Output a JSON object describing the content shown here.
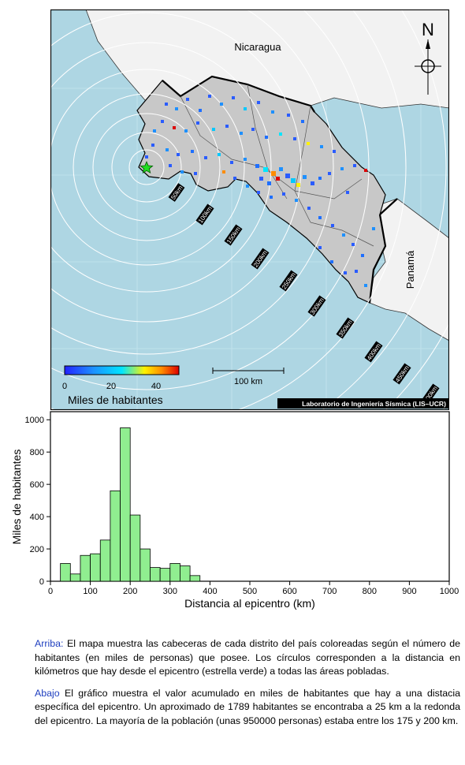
{
  "map": {
    "labels": {
      "north": "N",
      "nicaragua": "Nicaragua",
      "panama": "Panamá"
    },
    "ring_labels": [
      "50km",
      "100km",
      "150km",
      "200km",
      "250km",
      "300km",
      "350km",
      "400km",
      "450km",
      "500km"
    ],
    "scale_bar_label": "100 km",
    "colorbar": {
      "ticks": [
        "0",
        "20",
        "40"
      ],
      "title": "Miles de habitantes",
      "colors": [
        "#2a2aff",
        "#1e90ff",
        "#00e5ff",
        "#fff200",
        "#ff8c00",
        "#e00000"
      ]
    },
    "credit": "Laboratorio de Ingeniería Sísmica (LIS–UCR)",
    "colors": {
      "sea": "#aed6e3",
      "costa_rica": "#c8c8c8",
      "neighbors": "#f2f2f2",
      "epicenter": "#22dd22"
    }
  },
  "chart_data": {
    "type": "bar",
    "xlabel": "Distancia al epicentro (km)",
    "ylabel": "Miles de habitantes",
    "xlim": [
      0,
      1000
    ],
    "ylim": [
      0,
      1050
    ],
    "xticks": [
      0,
      100,
      200,
      300,
      400,
      500,
      600,
      700,
      800,
      900,
      1000
    ],
    "yticks": [
      0,
      200,
      400,
      600,
      800,
      1000
    ],
    "bin_width": 25,
    "bins": [
      {
        "start": 25,
        "value": 110
      },
      {
        "start": 50,
        "value": 45
      },
      {
        "start": 75,
        "value": 160
      },
      {
        "start": 100,
        "value": 170
      },
      {
        "start": 125,
        "value": 255
      },
      {
        "start": 150,
        "value": 560
      },
      {
        "start": 175,
        "value": 950
      },
      {
        "start": 200,
        "value": 410
      },
      {
        "start": 225,
        "value": 200
      },
      {
        "start": 250,
        "value": 85
      },
      {
        "start": 275,
        "value": 80
      },
      {
        "start": 300,
        "value": 110
      },
      {
        "start": 325,
        "value": 95
      },
      {
        "start": 350,
        "value": 35
      }
    ],
    "bar_color": "#90ee90"
  },
  "caption": {
    "p1_label": "Arriba:",
    "p1_text": " El mapa muestra las cabeceras de cada distrito del país coloreadas según el número de habitantes (en miles de personas) que posee.  Los círculos corresponden a la distancia en kilómetros que hay desde el epicentro (estrella verde) a todas las áreas pobladas.",
    "p2_label": "Abajo",
    "p2_text": " El gráfico muestra el valor acumulado en miles de habitantes que hay a una distacia específica del epicentro.  Un aproximado de 1789 habitantes se encontraba a 25 km a la redonda del epicentro.  La mayoría de la población (unas 950000 personas) estaba entre los 175 y 200 km."
  }
}
